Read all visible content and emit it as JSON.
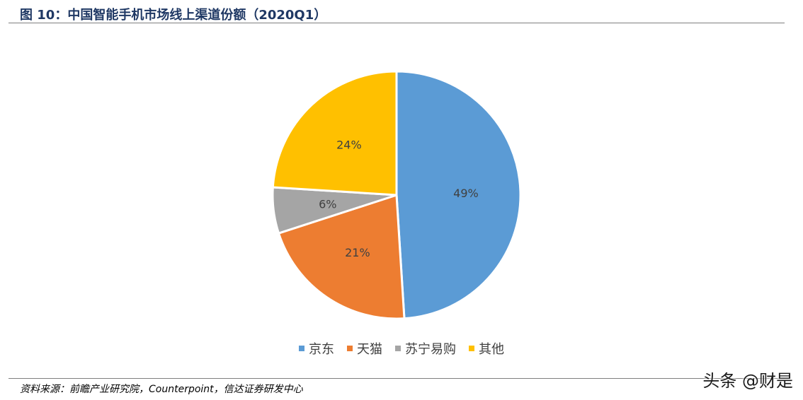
{
  "title": "图 10：中国智能手机市场线上渠道份额（2020Q1）",
  "source": "资料来源：前瞻产业研究院，Counterpoint，信达证券研发中心",
  "watermark": "头条 @财是",
  "chart_data": {
    "type": "pie",
    "slices": [
      {
        "label": "京东",
        "value": 49,
        "display": "49%",
        "color": "#5b9bd5"
      },
      {
        "label": "天猫",
        "value": 21,
        "display": "21%",
        "color": "#ed7d31"
      },
      {
        "label": "苏宁易购",
        "value": 6,
        "display": "6%",
        "color": "#a5a5a5"
      },
      {
        "label": "其他",
        "value": 24,
        "display": "24%",
        "color": "#ffc000"
      }
    ],
    "legend_position": "bottom"
  }
}
